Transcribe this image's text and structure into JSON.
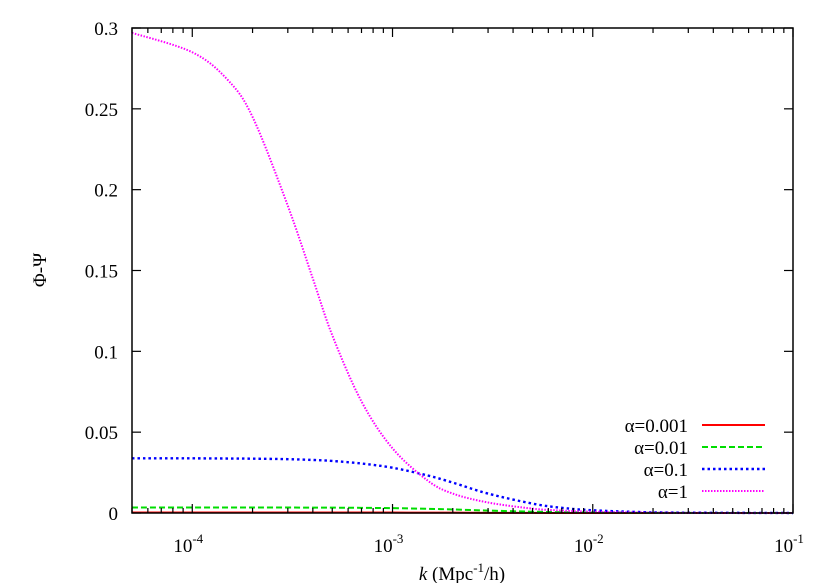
{
  "chart_data": {
    "type": "line",
    "title": "",
    "xlabel": "k (Mpc^-1/h)",
    "xlabel_parts": {
      "italic": "k",
      "pre": " (Mpc",
      "sup": "-1",
      "post": "/h)"
    },
    "ylabel": "Φ-Ψ",
    "xscale": "log",
    "xlim": [
      5e-05,
      0.1
    ],
    "ylim": [
      0,
      0.3
    ],
    "grid": false,
    "legend_position": "lower right",
    "x_ticks": [
      {
        "base": "10",
        "exp": "-4",
        "value": 0.0001
      },
      {
        "base": "10",
        "exp": "-3",
        "value": 0.001
      },
      {
        "base": "10",
        "exp": "-2",
        "value": 0.01
      },
      {
        "base": "10",
        "exp": "-1",
        "value": 0.1
      }
    ],
    "y_ticks": [
      "0",
      "0.05",
      "0.1",
      "0.15",
      "0.2",
      "0.25",
      "0.3"
    ],
    "x": [
      5e-05,
      0.0001,
      0.00015,
      0.0002,
      0.0003,
      0.0004,
      0.0005,
      0.0007,
      0.001,
      0.0015,
      0.002,
      0.003,
      0.005,
      0.007,
      0.01,
      0.02,
      0.05,
      0.1
    ],
    "series": [
      {
        "name": "α=0.001",
        "color": "#ff0000",
        "dash": "solid",
        "values": [
          0.0003,
          0.0003,
          0.0003,
          0.0003,
          0.0003,
          0.0003,
          0.0003,
          0.0003,
          0.0003,
          0.0002,
          0.0002,
          0.0001,
          0.0001,
          0.0,
          0.0,
          0.0,
          0.0,
          0.0
        ]
      },
      {
        "name": "α=0.01",
        "color": "#00dd00",
        "dash": "dashed",
        "values": [
          0.0034,
          0.0034,
          0.0034,
          0.0034,
          0.0034,
          0.0033,
          0.0033,
          0.0032,
          0.003,
          0.0026,
          0.0022,
          0.0015,
          0.0008,
          0.0005,
          0.0003,
          0.0001,
          0.0,
          0.0
        ]
      },
      {
        "name": "α=0.1",
        "color": "#0000ff",
        "dash": "dotted",
        "values": [
          0.0338,
          0.0338,
          0.0337,
          0.0336,
          0.0333,
          0.0328,
          0.0322,
          0.0306,
          0.028,
          0.0232,
          0.0188,
          0.012,
          0.0058,
          0.0032,
          0.0017,
          0.0004,
          0.0001,
          0.0
        ]
      },
      {
        "name": "α=1",
        "color": "#ff00ff",
        "dash": "dotted-fine",
        "values": [
          0.297,
          0.285,
          0.268,
          0.245,
          0.19,
          0.145,
          0.11,
          0.069,
          0.04,
          0.02,
          0.012,
          0.0065,
          0.0027,
          0.0015,
          0.0008,
          0.0002,
          0.0,
          0.0
        ]
      }
    ]
  }
}
